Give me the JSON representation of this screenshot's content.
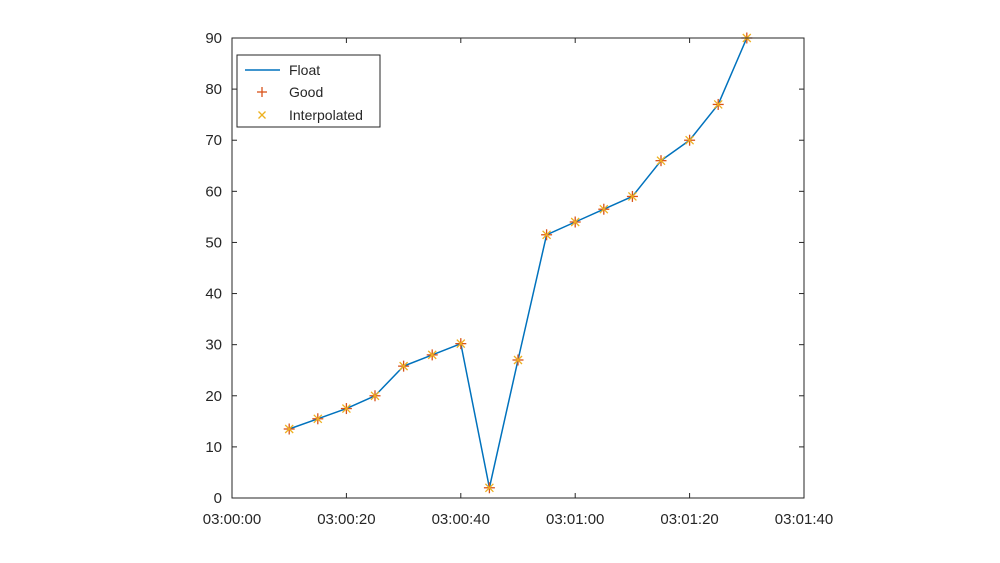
{
  "chart_data": {
    "type": "line",
    "title": "",
    "xlabel": "",
    "ylabel": "",
    "x_type": "time",
    "xlim": [
      "03:00:00",
      "03:01:40"
    ],
    "ylim": [
      0,
      90
    ],
    "xticks": [
      "03:00:00",
      "03:00:20",
      "03:00:40",
      "03:01:00",
      "03:01:20",
      "03:01:40"
    ],
    "yticks": [
      0,
      10,
      20,
      30,
      40,
      50,
      60,
      70,
      80,
      90
    ],
    "grid": false,
    "legend_position": "top-left",
    "x": [
      "03:00:10",
      "03:00:15",
      "03:00:20",
      "03:00:25",
      "03:00:30",
      "03:00:35",
      "03:00:40",
      "03:00:45",
      "03:00:50",
      "03:00:55",
      "03:01:00",
      "03:01:05",
      "03:01:10",
      "03:01:15",
      "03:01:20",
      "03:01:25",
      "03:01:30"
    ],
    "series": [
      {
        "name": "Float",
        "style": "line",
        "color": "#0072BD",
        "values": [
          13.5,
          15.5,
          17.5,
          20,
          25.8,
          28,
          30.2,
          2,
          27,
          51.5,
          54,
          56.5,
          59,
          66,
          70,
          77,
          90
        ]
      },
      {
        "name": "Good",
        "style": "marker-plus",
        "color": "#D95319",
        "values": [
          13.5,
          15.5,
          17.5,
          20,
          25.8,
          28,
          30.2,
          2,
          27,
          51.5,
          54,
          56.5,
          59,
          66,
          70,
          77,
          90
        ]
      },
      {
        "name": "Interpolated",
        "style": "marker-x",
        "color": "#EDB120",
        "values": [
          13.5,
          15.5,
          17.5,
          20,
          25.8,
          28,
          30.2,
          2,
          27,
          51.5,
          54,
          56.5,
          59,
          66,
          70,
          77,
          90
        ]
      }
    ]
  }
}
